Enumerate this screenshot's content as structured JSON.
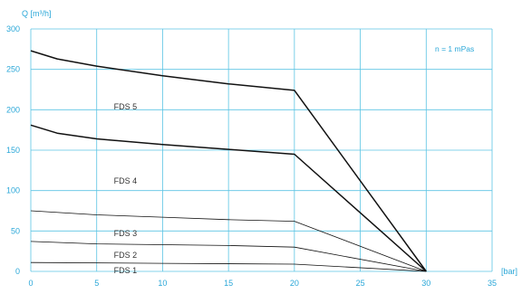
{
  "chart_data": {
    "type": "line",
    "title": "",
    "xlabel": "[bar]",
    "ylabel": "Q [m³/h]",
    "xlim": [
      0,
      35
    ],
    "ylim": [
      0,
      300
    ],
    "x_ticks": [
      0,
      5,
      10,
      15,
      20,
      25,
      30,
      35
    ],
    "y_ticks": [
      0,
      50,
      100,
      150,
      200,
      250,
      300
    ],
    "grid": true,
    "legend": "none",
    "annotation": "n = 1 mPas",
    "colors": {
      "grid": "#5bc4e4",
      "axis_text": "#2aa7d8",
      "label_text": "#333333",
      "curve": "#111111"
    },
    "series": [
      {
        "name": "FDS 5",
        "label_at": [
          6.3,
          204
        ],
        "stroke": 1.5,
        "points": [
          [
            0,
            273
          ],
          [
            2,
            263
          ],
          [
            5,
            254
          ],
          [
            10,
            242
          ],
          [
            15,
            232
          ],
          [
            20,
            224
          ],
          [
            30,
            0
          ]
        ]
      },
      {
        "name": "FDS 4",
        "label_at": [
          6.3,
          112
        ],
        "stroke": 1.5,
        "points": [
          [
            0,
            181
          ],
          [
            2,
            171
          ],
          [
            5,
            164
          ],
          [
            10,
            157
          ],
          [
            15,
            151
          ],
          [
            20,
            145
          ],
          [
            30,
            0
          ]
        ]
      },
      {
        "name": "FDS 3",
        "label_at": [
          6.3,
          47
        ],
        "stroke": 0.8,
        "points": [
          [
            0,
            75
          ],
          [
            5,
            70
          ],
          [
            10,
            67
          ],
          [
            15,
            64
          ],
          [
            20,
            62
          ],
          [
            30,
            0
          ]
        ]
      },
      {
        "name": "FDS 2",
        "label_at": [
          6.3,
          20
        ],
        "stroke": 0.8,
        "points": [
          [
            0,
            37
          ],
          [
            5,
            34
          ],
          [
            10,
            33
          ],
          [
            15,
            32
          ],
          [
            20,
            30
          ],
          [
            30,
            0
          ]
        ]
      },
      {
        "name": "FDS 1",
        "label_at": [
          6.3,
          1
        ],
        "stroke": 0.8,
        "points": [
          [
            0,
            11
          ],
          [
            10,
            10
          ],
          [
            20,
            9
          ],
          [
            30,
            0
          ]
        ]
      }
    ]
  }
}
